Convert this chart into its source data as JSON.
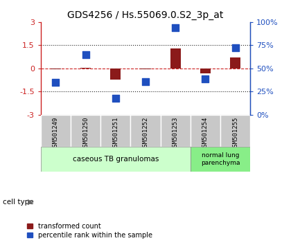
{
  "title": "GDS4256 / Hs.55069.0.S2_3p_at",
  "samples": [
    "GSM501249",
    "GSM501250",
    "GSM501251",
    "GSM501252",
    "GSM501253",
    "GSM501254",
    "GSM501255"
  ],
  "red_values": [
    -0.05,
    0.05,
    -0.7,
    -0.05,
    1.3,
    -0.3,
    0.7
  ],
  "blue_values_pct": [
    35,
    65,
    18,
    36,
    94,
    39,
    72
  ],
  "ylim": [
    -3,
    3
  ],
  "yticks_left": [
    -3,
    -1.5,
    0,
    1.5,
    3
  ],
  "yticks_right_pct": [
    0,
    25,
    50,
    75,
    100
  ],
  "red_color": "#8B1A1A",
  "blue_color": "#1F4FBF",
  "dashed_red_color": "#CC2222",
  "dotted_line_color": "#222222",
  "bg_plot": "#FFFFFF",
  "bg_labels": "#C8C8C8",
  "bg_group1": "#CCFFCC",
  "bg_group2": "#88EE88",
  "group1_label": "caseous TB granulomas",
  "group2_label": "normal lung\nparenchyma",
  "group1_count": 5,
  "group2_count": 2,
  "cell_type_label": "cell type",
  "legend_red": "transformed count",
  "legend_blue": "percentile rank within the sample",
  "bar_width": 0.35,
  "blue_marker_size": 45,
  "title_fontsize": 10
}
